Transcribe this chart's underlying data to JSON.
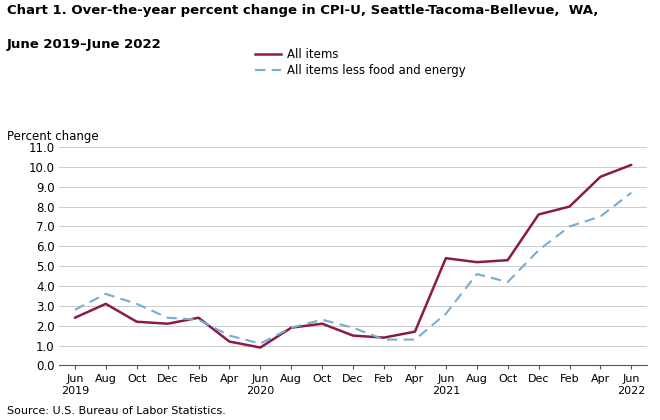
{
  "title_line1": "Chart 1. Over-the-year percent change in CPI-U, Seattle-Tacoma-Bellevue,  WA,",
  "title_line2": "June 2019–June 2022",
  "ylabel": "Percent change",
  "source": "Source: U.S. Bureau of Labor Statistics.",
  "x_labels": [
    "Jun\n2019",
    "Aug",
    "Oct",
    "Dec",
    "Feb",
    "Apr",
    "Jun\n2020",
    "Aug",
    "Oct",
    "Dec",
    "Feb",
    "Apr",
    "Jun\n2021",
    "Aug",
    "Oct",
    "Dec",
    "Feb",
    "Apr",
    "Jun\n2022"
  ],
  "all_items": [
    2.4,
    3.1,
    2.2,
    2.1,
    2.4,
    1.2,
    0.9,
    1.9,
    2.1,
    1.5,
    1.4,
    1.7,
    5.4,
    5.2,
    5.3,
    7.6,
    8.0,
    9.5,
    10.1
  ],
  "core_items": [
    2.8,
    3.6,
    3.1,
    2.4,
    2.3,
    1.5,
    1.1,
    1.9,
    2.3,
    1.9,
    1.3,
    1.3,
    2.6,
    4.6,
    4.2,
    5.8,
    7.0,
    7.5,
    8.7
  ],
  "all_items_color": "#8b1a4a",
  "core_items_color": "#74aed4",
  "ylim": [
    0.0,
    11.0
  ],
  "yticks": [
    0.0,
    1.0,
    2.0,
    3.0,
    4.0,
    5.0,
    6.0,
    7.0,
    8.0,
    9.0,
    10.0,
    11.0
  ],
  "legend_all_items": "All items",
  "legend_core_items": "All items less food and energy"
}
